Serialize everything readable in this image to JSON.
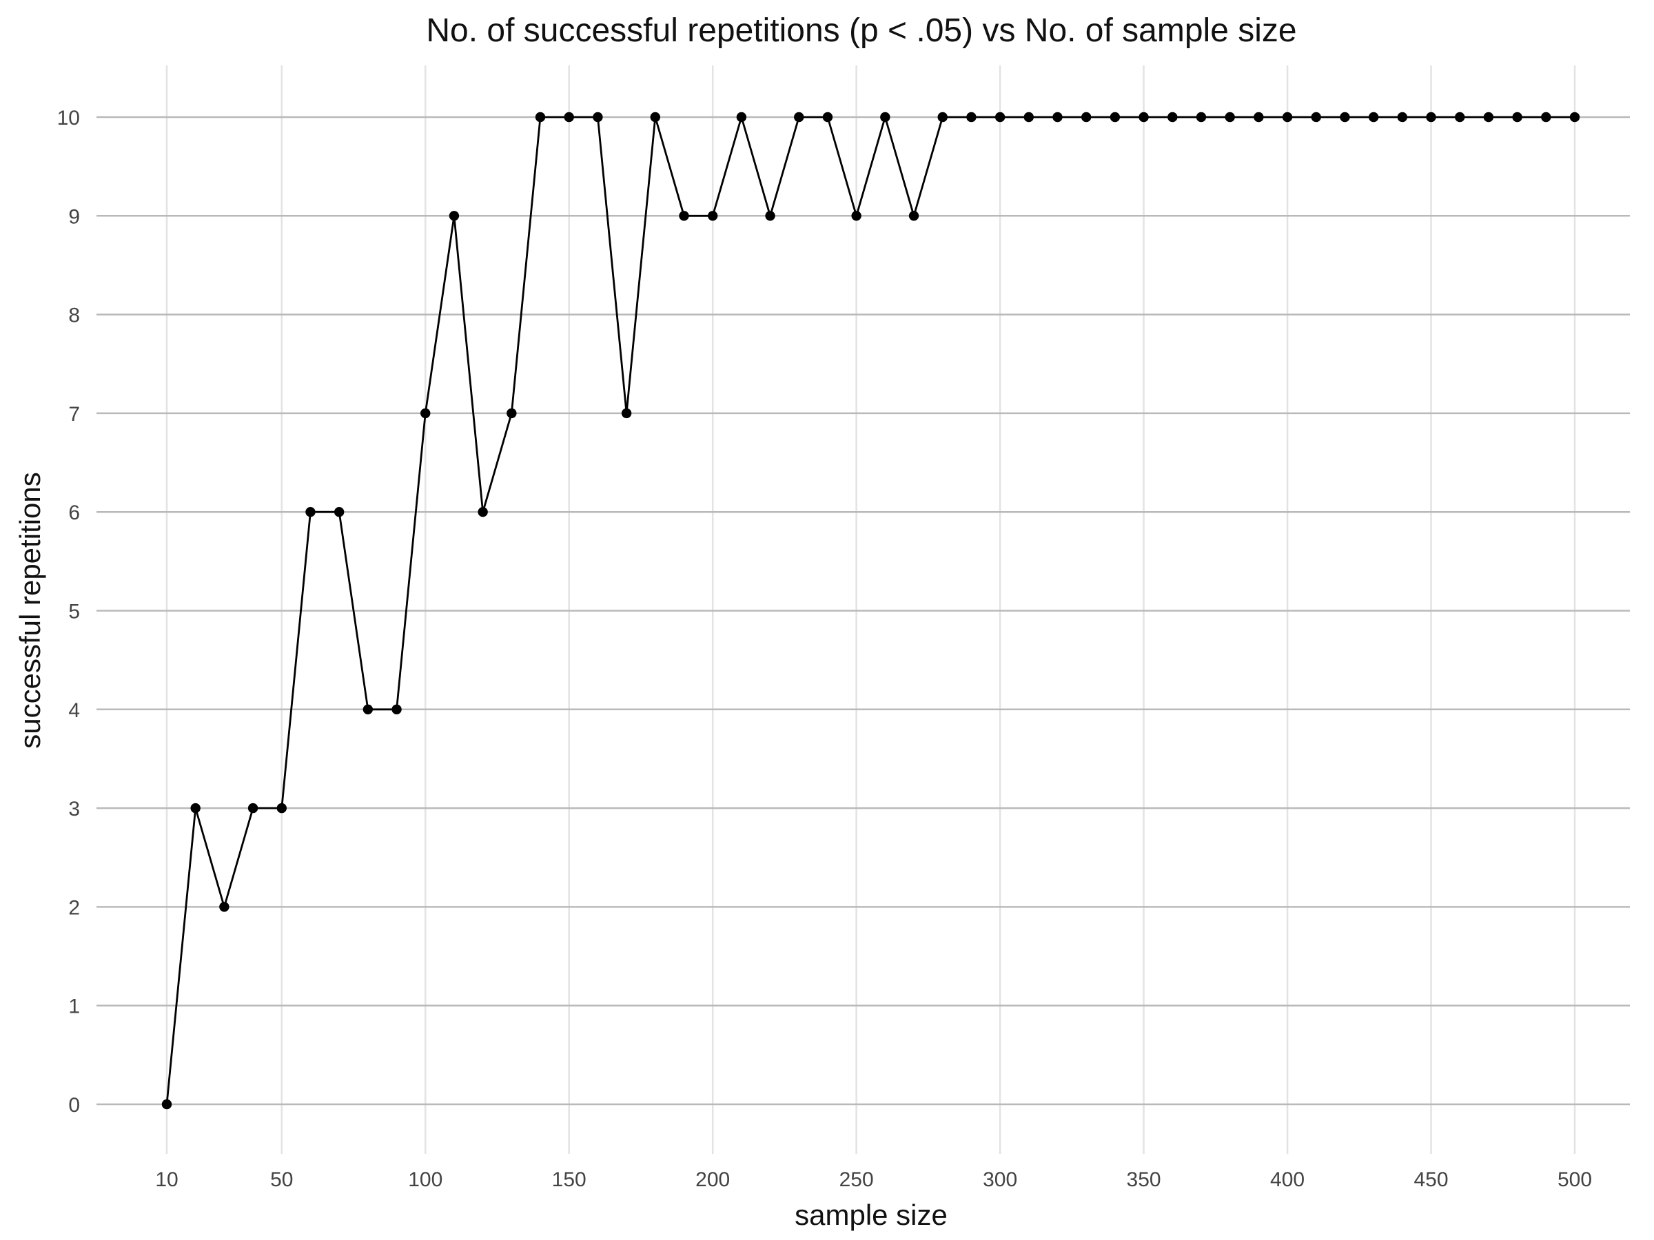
{
  "chart_data": {
    "type": "line",
    "title": "No. of successful repetitions (p < .05) vs No. of sample size",
    "xlabel": "sample size",
    "ylabel": "successful repetitions",
    "xlim": [
      10,
      500
    ],
    "ylim": [
      0,
      10
    ],
    "x_ticks": [
      10,
      50,
      100,
      150,
      200,
      250,
      300,
      350,
      400,
      450,
      500
    ],
    "x_tick_labels": [
      "10",
      "50",
      "100",
      "150",
      "200",
      "250",
      "300",
      "350",
      "400",
      "450",
      "500"
    ],
    "y_ticks": [
      0,
      1,
      2,
      3,
      4,
      5,
      6,
      7,
      8,
      9,
      10
    ],
    "y_tick_labels": [
      "0",
      "1",
      "2",
      "3",
      "4",
      "5",
      "6",
      "7",
      "8",
      "9",
      "10"
    ],
    "grid": true,
    "legend": "none",
    "series": [
      {
        "x": [
          10,
          20,
          30,
          40,
          50,
          60,
          70,
          80,
          90,
          100,
          110,
          120,
          130,
          140,
          150,
          160,
          170,
          180,
          190,
          200,
          210,
          220,
          230,
          240,
          250,
          260,
          270,
          280,
          290,
          300,
          310,
          320,
          330,
          340,
          350,
          360,
          370,
          380,
          390,
          400,
          410,
          420,
          430,
          440,
          450,
          460,
          470,
          480,
          490,
          500
        ],
        "values": [
          0,
          3,
          2,
          3,
          3,
          6,
          6,
          4,
          4,
          7,
          9,
          6,
          7,
          10,
          10,
          10,
          7,
          10,
          9,
          9,
          10,
          9,
          10,
          10,
          9,
          10,
          9,
          10,
          10,
          10,
          10,
          10,
          10,
          10,
          10,
          10,
          10,
          10,
          10,
          10,
          10,
          10,
          10,
          10,
          10,
          10,
          10,
          10,
          10,
          10
        ]
      }
    ],
    "colors": {
      "line": "#000000",
      "points": "#000000",
      "major_grid_y": "#b9b9b9",
      "major_grid_x": "#e3e3e3",
      "text": "#111111",
      "tick_text": "#444444",
      "background": "#ffffff"
    }
  }
}
